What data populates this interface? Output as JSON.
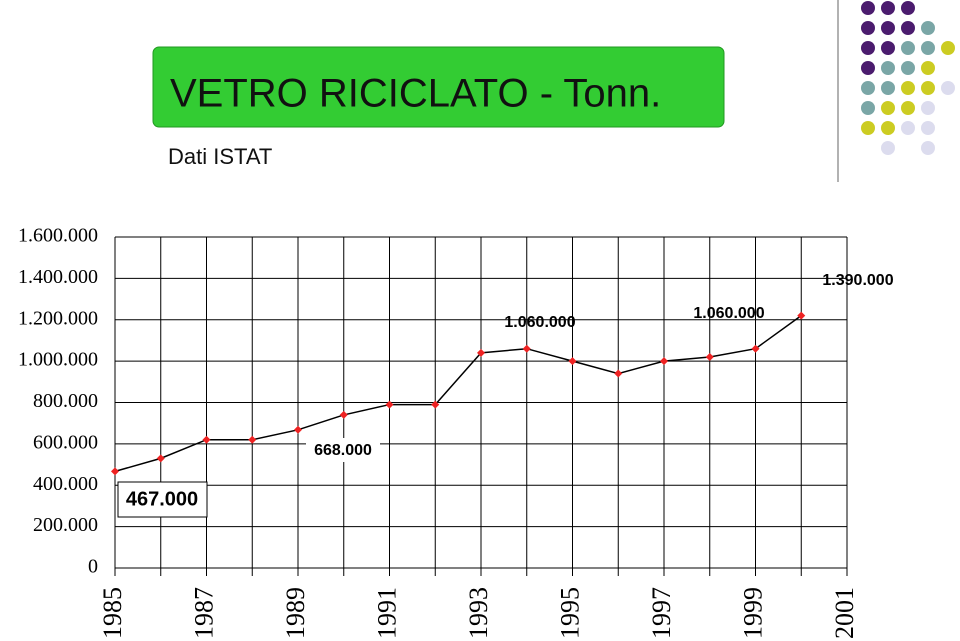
{
  "chart_data": {
    "type": "line",
    "title": "VETRO RICICLATO - Tonn.",
    "subtitle": "Dati ISTAT",
    "categories": [
      "1985",
      null,
      "1987",
      null,
      "1989",
      null,
      "1991",
      null,
      "1993",
      null,
      "1995",
      null,
      "1997",
      null,
      "1999",
      null,
      "2001"
    ],
    "values": [
      467000,
      530000,
      620000,
      620000,
      668000,
      740000,
      790000,
      790000,
      1040000,
      1060000,
      1000000,
      940000,
      1000000,
      1020000,
      1060000,
      1220000,
      null
    ],
    "color": "#000000",
    "marker_color": "#ee2222",
    "ylim": [
      0,
      1600000
    ],
    "yticks": [
      0,
      {
        "value": 200000,
        "label": "200.000"
      },
      {
        "value": 400000,
        "label": "400.000"
      },
      {
        "value": 600000,
        "label": "600.000"
      },
      {
        "value": 800000,
        "label": "800.000"
      },
      {
        "value": 1000000,
        "label": "1.000.000"
      },
      {
        "value": 1200000,
        "label": "1.200.000"
      },
      {
        "value": 1400000,
        "label": "1.400.000"
      },
      {
        "value": 1600000,
        "label": "1.600.000"
      }
    ],
    "grid": true,
    "annotations": [
      "467.000",
      "668.000",
      "1.060.000",
      "1.060.000",
      "1.390.000"
    ]
  }
}
